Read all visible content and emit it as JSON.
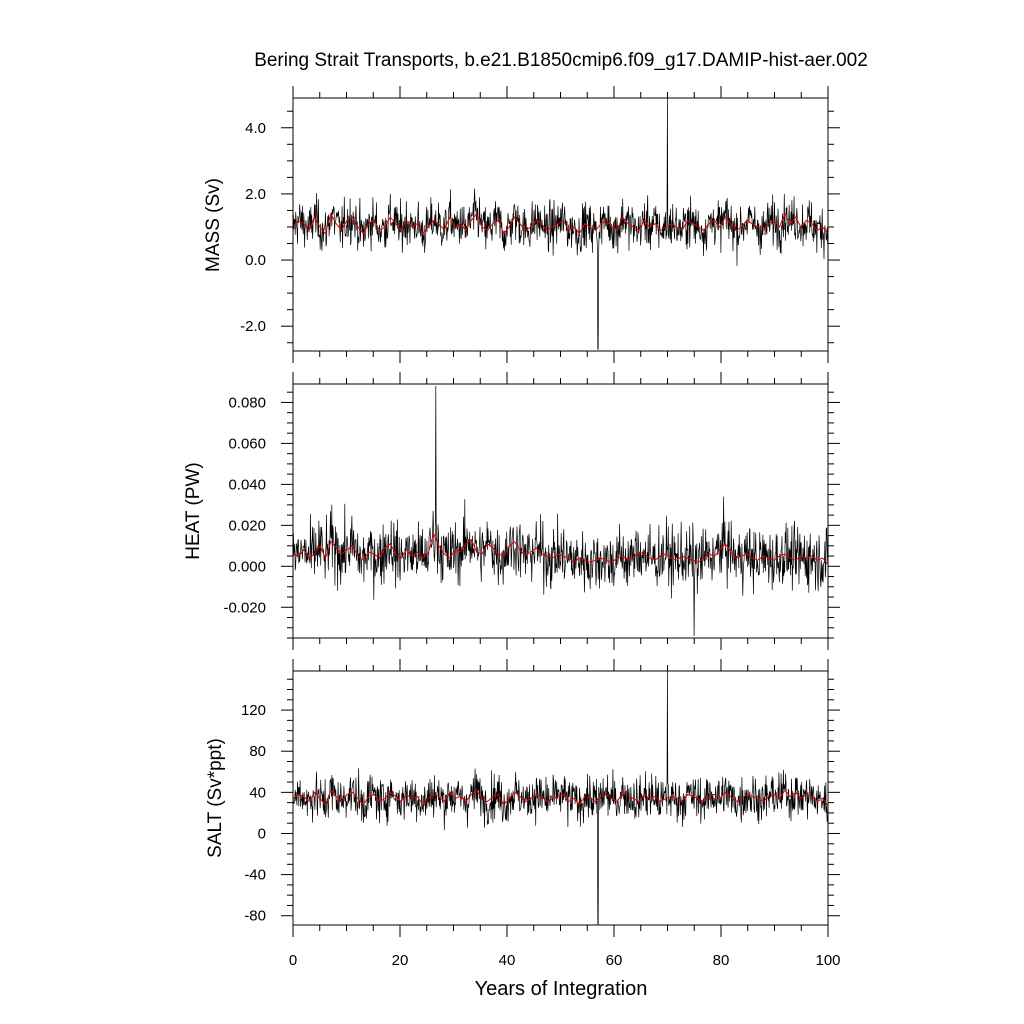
{
  "chart_data": [
    {
      "type": "line",
      "title": "Bering Strait Transports, b.e21.B1850cmip6.f09_g17.DAMIP-hist-aer.002",
      "ylabel": "MASS (Sv)",
      "xlabel": "",
      "xlim": [
        0,
        100
      ],
      "ylim": [
        -2.75,
        4.9
      ],
      "yticks": [
        -2.0,
        0.0,
        2.0,
        4.0
      ],
      "ytick_labels": [
        "-2.0",
        "0.0",
        "2.0",
        "4.0"
      ],
      "raw_summary": {
        "monthly_points": 1200,
        "mean": 1.0,
        "approx_std": 0.65,
        "max": 4.9,
        "max_year": 70,
        "min": -2.7,
        "min_year": 57
      },
      "series": [
        {
          "name": "",
          "color": "#000000",
          "values": [
            1.0,
            1.2,
            1.1,
            0.9,
            1.3,
            1.0,
            0.8,
            1.4,
            1.1,
            0.9,
            1.2,
            1.3,
            1.0,
            0.8,
            1.1,
            1.2,
            0.9,
            1.0,
            1.3,
            1.1,
            0.9,
            1.2,
            1.0,
            1.1,
            0.8,
            1.0,
            1.2,
            1.1,
            0.9,
            1.3,
            1.0,
            1.1,
            0.9,
            1.2,
            1.4,
            1.0,
            0.9,
            1.1,
            1.2,
            0.8,
            1.0,
            1.3,
            1.1,
            0.9,
            1.0,
            1.2,
            1.1,
            0.9,
            1.0,
            1.1,
            1.2,
            0.9,
            1.0,
            0.8,
            1.1,
            1.0,
            0.9,
            1.1,
            1.2,
            1.0,
            0.9,
            1.3,
            1.1,
            1.0,
            0.9,
            1.2,
            1.0,
            1.1,
            0.9,
            1.0,
            1.1,
            1.0,
            0.9,
            1.2,
            1.1,
            1.0,
            0.9,
            1.1,
            1.2,
            1.0,
            1.3,
            1.1,
            0.9,
            1.0,
            1.2,
            1.1,
            1.0,
            0.9,
            1.1,
            1.2,
            1.0,
            1.4,
            1.1,
            1.3,
            1.0,
            1.2,
            1.1,
            0.9,
            1.0,
            0.8
          ]
        },
        {
          "name": "",
          "color": "#e00000",
          "values": [
            1.0,
            1.2,
            1.1,
            0.9,
            1.3,
            1.0,
            0.8,
            1.4,
            1.1,
            0.9,
            1.2,
            1.3,
            1.0,
            0.8,
            1.1,
            1.2,
            0.9,
            1.0,
            1.3,
            1.1,
            0.9,
            1.2,
            1.0,
            1.1,
            0.8,
            1.0,
            1.2,
            1.1,
            0.9,
            1.3,
            1.0,
            1.1,
            0.9,
            1.2,
            1.4,
            1.0,
            0.9,
            1.1,
            1.2,
            0.8,
            1.0,
            1.3,
            1.1,
            0.9,
            1.0,
            1.2,
            1.1,
            0.9,
            1.0,
            1.1,
            1.2,
            0.9,
            1.0,
            0.8,
            1.1,
            1.0,
            0.9,
            1.1,
            1.2,
            1.0,
            0.9,
            1.3,
            1.1,
            1.0,
            0.9,
            1.2,
            1.0,
            1.1,
            0.9,
            1.0,
            1.1,
            1.0,
            0.9,
            1.2,
            1.1,
            1.0,
            0.9,
            1.1,
            1.2,
            1.0,
            1.3,
            1.1,
            0.9,
            1.0,
            1.2,
            1.1,
            1.0,
            0.9,
            1.1,
            1.2,
            1.0,
            1.4,
            1.1,
            1.3,
            1.0,
            1.2,
            1.1,
            0.9,
            1.0,
            0.8
          ]
        }
      ]
    },
    {
      "type": "line",
      "title": "",
      "ylabel": "HEAT (PW)",
      "xlabel": "",
      "xlim": [
        0,
        100
      ],
      "ylim": [
        -0.035,
        0.089
      ],
      "yticks": [
        -0.02,
        0.0,
        0.02,
        0.04,
        0.06,
        0.08
      ],
      "ytick_labels": [
        "-0.020",
        "0.000",
        "0.020",
        "0.040",
        "0.060",
        "0.080"
      ],
      "raw_summary": {
        "monthly_points": 1200,
        "mean": 0.006,
        "approx_std": 0.014,
        "max": 0.088,
        "max_year": 26.7,
        "min": -0.034,
        "min_year": 75
      },
      "series": [
        {
          "name": "",
          "color": "#000000",
          "values": [
            0.006,
            0.005,
            0.008,
            0.004,
            0.006,
            0.01,
            0.004,
            0.012,
            0.009,
            0.006,
            0.008,
            0.01,
            0.005,
            0.003,
            0.007,
            0.006,
            0.004,
            0.009,
            0.011,
            0.006,
            0.004,
            0.008,
            0.005,
            0.007,
            0.004,
            0.006,
            0.016,
            0.01,
            0.006,
            0.004,
            0.008,
            0.007,
            0.011,
            0.013,
            0.007,
            0.006,
            0.011,
            0.009,
            0.006,
            0.005,
            0.01,
            0.012,
            0.008,
            0.005,
            0.007,
            0.009,
            0.006,
            0.005,
            0.004,
            0.006,
            0.005,
            0.004,
            0.002,
            0.004,
            0.003,
            0.002,
            0.003,
            0.004,
            0.003,
            0.002,
            0.004,
            0.005,
            0.003,
            0.004,
            0.007,
            0.006,
            0.004,
            0.003,
            0.005,
            0.006,
            0.004,
            0.003,
            0.005,
            0.004,
            0.003,
            0.002,
            0.004,
            0.006,
            0.005,
            0.008,
            0.011,
            0.007,
            0.004,
            0.005,
            0.006,
            0.004,
            0.003,
            0.005,
            0.004,
            0.003,
            0.005,
            0.006,
            0.004,
            0.003,
            0.005,
            0.004,
            0.005,
            0.003,
            0.004,
            0.001
          ]
        },
        {
          "name": "",
          "color": "#e00000",
          "values": [
            0.006,
            0.005,
            0.008,
            0.004,
            0.006,
            0.01,
            0.004,
            0.012,
            0.009,
            0.006,
            0.008,
            0.01,
            0.005,
            0.003,
            0.007,
            0.006,
            0.004,
            0.009,
            0.011,
            0.006,
            0.004,
            0.008,
            0.005,
            0.007,
            0.004,
            0.006,
            0.016,
            0.01,
            0.006,
            0.004,
            0.008,
            0.007,
            0.011,
            0.013,
            0.007,
            0.006,
            0.011,
            0.009,
            0.006,
            0.005,
            0.01,
            0.012,
            0.008,
            0.005,
            0.007,
            0.009,
            0.006,
            0.005,
            0.004,
            0.006,
            0.005,
            0.004,
            0.002,
            0.004,
            0.003,
            0.002,
            0.003,
            0.004,
            0.003,
            0.002,
            0.004,
            0.005,
            0.003,
            0.004,
            0.007,
            0.006,
            0.004,
            0.003,
            0.005,
            0.006,
            0.004,
            0.003,
            0.005,
            0.004,
            0.003,
            0.002,
            0.004,
            0.006,
            0.005,
            0.008,
            0.011,
            0.007,
            0.004,
            0.005,
            0.006,
            0.004,
            0.003,
            0.005,
            0.004,
            0.003,
            0.005,
            0.006,
            0.004,
            0.003,
            0.005,
            0.004,
            0.005,
            0.003,
            0.004,
            0.001
          ]
        }
      ]
    },
    {
      "type": "line",
      "title": "",
      "ylabel": "SALT (Sv*ppt)",
      "xlabel": "Years of Integration",
      "xlim": [
        0,
        100
      ],
      "ylim": [
        -89,
        158
      ],
      "xticks": [
        0,
        20,
        40,
        60,
        80,
        100
      ],
      "xtick_labels": [
        "0",
        "20",
        "40",
        "60",
        "80",
        "100"
      ],
      "yticks": [
        -80,
        -40,
        0,
        40,
        80,
        120
      ],
      "ytick_labels": [
        "-80",
        "-40",
        "0",
        "40",
        "80",
        "120"
      ],
      "raw_summary": {
        "monthly_points": 1200,
        "mean": 35,
        "approx_std": 20,
        "max": 158,
        "max_year": 70,
        "min": -88,
        "min_year": 57
      },
      "series": [
        {
          "name": "",
          "color": "#000000",
          "values": [
            34,
            38,
            36,
            31,
            40,
            34,
            28,
            42,
            36,
            31,
            38,
            40,
            34,
            28,
            36,
            38,
            31,
            34,
            40,
            36,
            31,
            38,
            34,
            36,
            28,
            34,
            38,
            36,
            31,
            40,
            34,
            36,
            31,
            38,
            42,
            34,
            31,
            36,
            38,
            28,
            34,
            40,
            36,
            31,
            34,
            38,
            36,
            31,
            34,
            36,
            38,
            31,
            34,
            28,
            36,
            34,
            31,
            36,
            38,
            34,
            31,
            40,
            36,
            34,
            31,
            38,
            34,
            36,
            31,
            34,
            36,
            34,
            31,
            38,
            36,
            34,
            31,
            36,
            38,
            34,
            40,
            36,
            31,
            34,
            38,
            36,
            34,
            31,
            36,
            38,
            34,
            42,
            36,
            40,
            34,
            38,
            36,
            31,
            34,
            27
          ]
        },
        {
          "name": "",
          "color": "#e00000",
          "values": [
            34,
            38,
            36,
            31,
            40,
            34,
            28,
            42,
            36,
            31,
            38,
            40,
            34,
            28,
            36,
            38,
            31,
            34,
            40,
            36,
            31,
            38,
            34,
            36,
            28,
            34,
            38,
            36,
            31,
            40,
            34,
            36,
            31,
            38,
            42,
            34,
            31,
            36,
            38,
            28,
            34,
            40,
            36,
            31,
            34,
            38,
            36,
            31,
            34,
            36,
            38,
            31,
            34,
            28,
            36,
            34,
            31,
            36,
            38,
            34,
            31,
            40,
            36,
            34,
            31,
            38,
            34,
            36,
            31,
            34,
            36,
            34,
            31,
            38,
            36,
            34,
            31,
            36,
            38,
            34,
            40,
            36,
            31,
            34,
            38,
            36,
            34,
            31,
            36,
            38,
            34,
            42,
            36,
            40,
            34,
            38,
            36,
            31,
            34,
            27
          ]
        }
      ]
    }
  ]
}
